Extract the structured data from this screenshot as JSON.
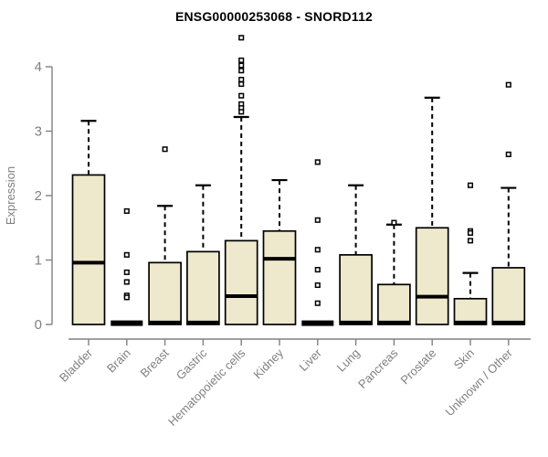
{
  "page": {
    "background": "#FFFFFF"
  },
  "colors": {
    "box_fill": "#EEE8CD",
    "box_stroke": "#000000",
    "median": "#000000",
    "whisker": "#000000",
    "outlier_stroke": "#000000",
    "outlier_fill": "#FFFFFF",
    "axis": "#808080",
    "tick_text": "#808080",
    "title_text": "#000000"
  },
  "chart_data": {
    "type": "boxplot",
    "title": "ENSG00000253068 - SNORD112",
    "ylabel": "Expression",
    "xlabel": "",
    "ylim": [
      0,
      4
    ],
    "yticks": [
      0,
      1,
      2,
      3,
      4
    ],
    "grid": false,
    "legend_position": "none",
    "categories": [
      "Bladder",
      "Brain",
      "Breast",
      "Gastric",
      "Hematopoietic cells",
      "Kidney",
      "Liver",
      "Lung",
      "Pancreas",
      "Prostate",
      "Skin",
      "Unknown / Other"
    ],
    "series": [
      {
        "category": "Bladder",
        "low": 0,
        "q1": 0,
        "median": 0.96,
        "q3": 2.32,
        "high": 3.16,
        "outliers": []
      },
      {
        "category": "Brain",
        "low": 0,
        "q1": 0,
        "median": 0.02,
        "q3": 0.02,
        "high": 0.02,
        "outliers": [
          1.76,
          1.08,
          0.81,
          0.66,
          0.45,
          0.42
        ]
      },
      {
        "category": "Breast",
        "low": 0,
        "q1": 0,
        "median": 0.03,
        "q3": 0.96,
        "high": 1.84,
        "outliers": [
          2.72
        ]
      },
      {
        "category": "Gastric",
        "low": 0,
        "q1": 0,
        "median": 0.03,
        "q3": 1.13,
        "high": 2.16,
        "outliers": []
      },
      {
        "category": "Hematopoietic cells",
        "low": 0,
        "q1": 0,
        "median": 0.44,
        "q3": 1.3,
        "high": 3.22,
        "outliers": [
          4.45,
          4.1,
          4.02,
          3.94,
          3.8,
          3.73,
          3.55,
          3.42,
          3.36,
          3.3
        ]
      },
      {
        "category": "Kidney",
        "low": 0,
        "q1": 0,
        "median": 1.02,
        "q3": 1.45,
        "high": 2.24,
        "outliers": []
      },
      {
        "category": "Liver",
        "low": 0,
        "q1": 0,
        "median": 0.02,
        "q3": 0.02,
        "high": 0.02,
        "outliers": [
          2.52,
          1.62,
          1.16,
          0.85,
          0.61,
          0.33
        ]
      },
      {
        "category": "Lung",
        "low": 0,
        "q1": 0,
        "median": 0.03,
        "q3": 1.08,
        "high": 2.16,
        "outliers": []
      },
      {
        "category": "Pancreas",
        "low": 0,
        "q1": 0,
        "median": 0.03,
        "q3": 0.62,
        "high": 1.55,
        "outliers": [
          1.58
        ]
      },
      {
        "category": "Prostate",
        "low": 0,
        "q1": 0,
        "median": 0.43,
        "q3": 1.5,
        "high": 3.52,
        "outliers": []
      },
      {
        "category": "Skin",
        "low": 0,
        "q1": 0,
        "median": 0.03,
        "q3": 0.4,
        "high": 0.8,
        "outliers": [
          2.16,
          1.45,
          1.42,
          1.3
        ]
      },
      {
        "category": "Unknown / Other",
        "low": 0,
        "q1": 0,
        "median": 0.03,
        "q3": 0.88,
        "high": 2.12,
        "outliers": [
          3.72,
          2.64
        ]
      }
    ]
  }
}
